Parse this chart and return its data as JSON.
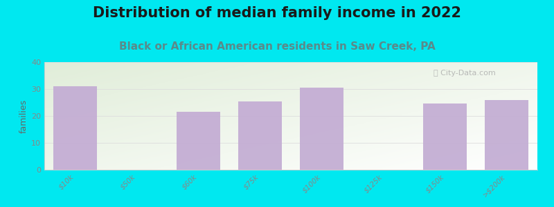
{
  "title": "Distribution of median family income in 2022",
  "subtitle": "Black or African American residents in Saw Creek, PA",
  "ylabel": "families",
  "categories": [
    "$10k",
    "$50k",
    "$60k",
    "$75k",
    "$100k",
    "$125k",
    "$150k",
    ">$200k"
  ],
  "values": [
    31,
    0,
    21.5,
    25.5,
    30.5,
    0,
    24.5,
    26
  ],
  "bar_color": "#c4aed4",
  "background_outer": "#00e8f0",
  "ylim": [
    0,
    40
  ],
  "yticks": [
    0,
    10,
    20,
    30,
    40
  ],
  "title_fontsize": 15,
  "subtitle_fontsize": 11,
  "ylabel_fontsize": 9,
  "watermark": "ⓘ City-Data.com",
  "grid_color": "#dddddd",
  "tick_label_color": "#888888"
}
